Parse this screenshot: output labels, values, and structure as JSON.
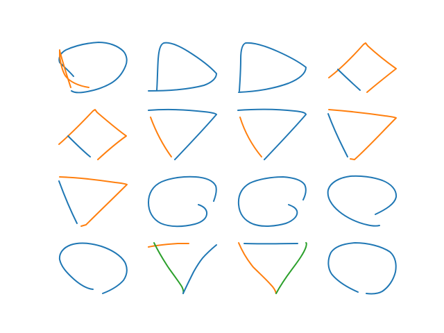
{
  "colors": {
    "blue": "#1f77b4",
    "orange": "#ff7f0e",
    "green": "#2ca02c",
    "background": "#ffffff"
  },
  "grid": {
    "rows": 4,
    "cols": 4
  },
  "sketches": [
    {
      "row": 0,
      "col": 0,
      "shape": "circle",
      "strokes": [
        {
          "color": "blue",
          "role": "main"
        },
        {
          "color": "orange",
          "role": "overlay"
        }
      ]
    },
    {
      "row": 0,
      "col": 1,
      "shape": "d-shape",
      "strokes": [
        {
          "color": "blue",
          "role": "main"
        }
      ]
    },
    {
      "row": 0,
      "col": 2,
      "shape": "d-shape",
      "strokes": [
        {
          "color": "blue",
          "role": "main"
        }
      ]
    },
    {
      "row": 0,
      "col": 3,
      "shape": "diamond",
      "strokes": [
        {
          "color": "orange",
          "role": "main"
        },
        {
          "color": "blue",
          "role": "edge"
        }
      ]
    },
    {
      "row": 1,
      "col": 0,
      "shape": "diamond",
      "strokes": [
        {
          "color": "orange",
          "role": "main"
        },
        {
          "color": "blue",
          "role": "edge"
        }
      ]
    },
    {
      "row": 1,
      "col": 1,
      "shape": "triangle-down",
      "strokes": [
        {
          "color": "blue",
          "role": "main"
        },
        {
          "color": "orange",
          "role": "edge"
        }
      ]
    },
    {
      "row": 1,
      "col": 2,
      "shape": "triangle-down",
      "strokes": [
        {
          "color": "blue",
          "role": "main"
        },
        {
          "color": "orange",
          "role": "edge"
        }
      ]
    },
    {
      "row": 1,
      "col": 3,
      "shape": "triangle-down",
      "strokes": [
        {
          "color": "orange",
          "role": "main"
        },
        {
          "color": "blue",
          "role": "edge"
        }
      ]
    },
    {
      "row": 2,
      "col": 0,
      "shape": "triangle-down",
      "strokes": [
        {
          "color": "orange",
          "role": "main"
        },
        {
          "color": "blue",
          "role": "edge"
        }
      ]
    },
    {
      "row": 2,
      "col": 1,
      "shape": "spiral-circle",
      "strokes": [
        {
          "color": "blue",
          "role": "main"
        }
      ]
    },
    {
      "row": 2,
      "col": 2,
      "shape": "spiral-circle",
      "strokes": [
        {
          "color": "blue",
          "role": "main"
        }
      ]
    },
    {
      "row": 2,
      "col": 3,
      "shape": "open-circle",
      "strokes": [
        {
          "color": "blue",
          "role": "main"
        }
      ]
    },
    {
      "row": 3,
      "col": 0,
      "shape": "open-circle",
      "strokes": [
        {
          "color": "blue",
          "role": "main"
        }
      ]
    },
    {
      "row": 3,
      "col": 1,
      "shape": "v-shape",
      "strokes": [
        {
          "color": "orange",
          "role": "top"
        },
        {
          "color": "green",
          "role": "left"
        },
        {
          "color": "blue",
          "role": "right"
        }
      ]
    },
    {
      "row": 3,
      "col": 2,
      "shape": "v-shape",
      "strokes": [
        {
          "color": "blue",
          "role": "top"
        },
        {
          "color": "orange",
          "role": "left"
        },
        {
          "color": "green",
          "role": "right"
        }
      ]
    },
    {
      "row": 3,
      "col": 3,
      "shape": "open-circle",
      "strokes": [
        {
          "color": "blue",
          "role": "main"
        }
      ]
    }
  ]
}
